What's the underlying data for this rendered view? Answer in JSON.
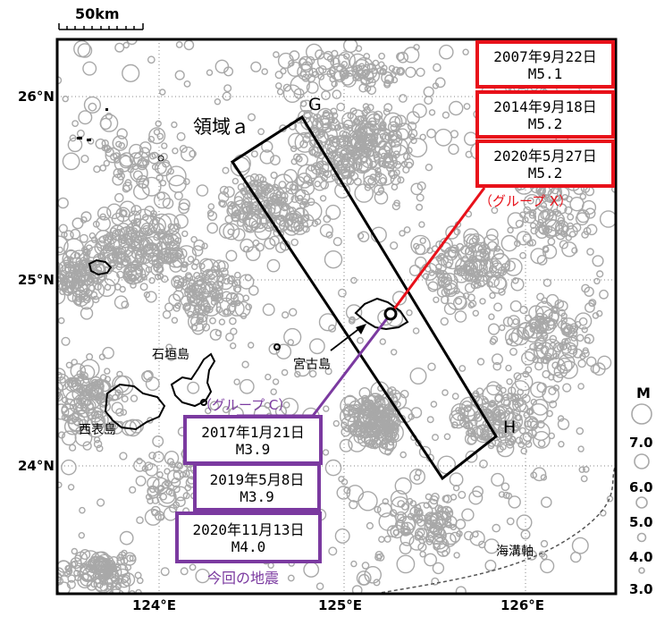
{
  "map": {
    "scale_label": "50km",
    "region_label": "領域ａ",
    "corner_g": "G",
    "corner_h": "H",
    "lat_labels": [
      "26°N",
      "25°N",
      "24°N"
    ],
    "lon_labels": [
      "124°E",
      "125°E",
      "126°E"
    ],
    "islands": {
      "ishigaki": "石垣島",
      "iriomote": "西表島",
      "miyako": "宮古島"
    },
    "trench_label": "海溝軸",
    "current_quake_label": "今回の地震",
    "colors": {
      "red": "#e8111a",
      "purple": "#7b3aa0",
      "quake_gray": "#a8a8a8"
    }
  },
  "group_x": {
    "label": "（グループ X）",
    "events": [
      {
        "date": "2007年9月22日",
        "mag": "M5.1"
      },
      {
        "date": "2014年9月18日",
        "mag": "M5.2"
      },
      {
        "date": "2020年5月27日",
        "mag": "M5.2"
      }
    ]
  },
  "group_c": {
    "label": "（グループ C）",
    "events": [
      {
        "date": "2017年1月21日",
        "mag": "M3.9"
      },
      {
        "date": "2019年5月8日",
        "mag": "M3.9"
      },
      {
        "date": "2020年11月13日",
        "mag": "M4.0"
      }
    ]
  },
  "legend": {
    "title": "M",
    "values": [
      "7.0",
      "6.0",
      "5.0",
      "4.0",
      "3.0"
    ]
  }
}
